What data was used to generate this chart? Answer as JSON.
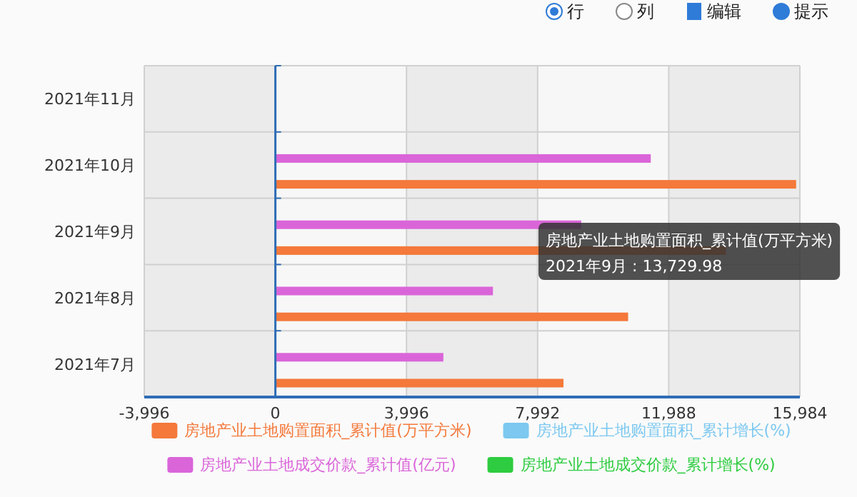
{
  "chart_data": {
    "type": "bar",
    "orientation": "horizontal",
    "categories": [
      "2021年11月",
      "2021年10月",
      "2021年9月",
      "2021年8月",
      "2021年7月"
    ],
    "series": [
      {
        "name": "房地产业土地购置面积_累计值(万平方米)",
        "color": "#f4793b",
        "values": [
          null,
          15870,
          13729.98,
          10750,
          8780
        ]
      },
      {
        "name": "房地产业土地购置面积_累计增长(%)",
        "color": "#7cc8f0",
        "values": [
          null,
          null,
          null,
          null,
          null
        ]
      },
      {
        "name": "房地产业土地成交价款_累计值(亿元)",
        "color": "#da65d9",
        "values": [
          null,
          11440,
          9320,
          6630,
          5120
        ]
      },
      {
        "name": "房地产业土地成交价款_累计增长(%)",
        "color": "#2ecc40",
        "values": [
          null,
          null,
          null,
          null,
          null
        ]
      }
    ],
    "xlim": [
      -3996,
      15984
    ],
    "xticks": [
      {
        "value": -3996,
        "label": "-3,996"
      },
      0,
      {
        "value": 3996,
        "label": "3,996"
      },
      {
        "value": 7992,
        "label": "7,992"
      },
      {
        "value": 11988,
        "label": "11,988"
      },
      {
        "value": 15984,
        "label": "15,984"
      }
    ],
    "grid": true,
    "legend": "bottom",
    "ref_lines": [
      {
        "axis": "x",
        "value": 0,
        "color": "#2f6db5"
      }
    ],
    "annotations": [
      "行",
      "列",
      "编辑",
      "提示",
      "房地产业土地购置面积_累计值(万平方米)\n2021年9月 : 13,729.98"
    ]
  }
}
